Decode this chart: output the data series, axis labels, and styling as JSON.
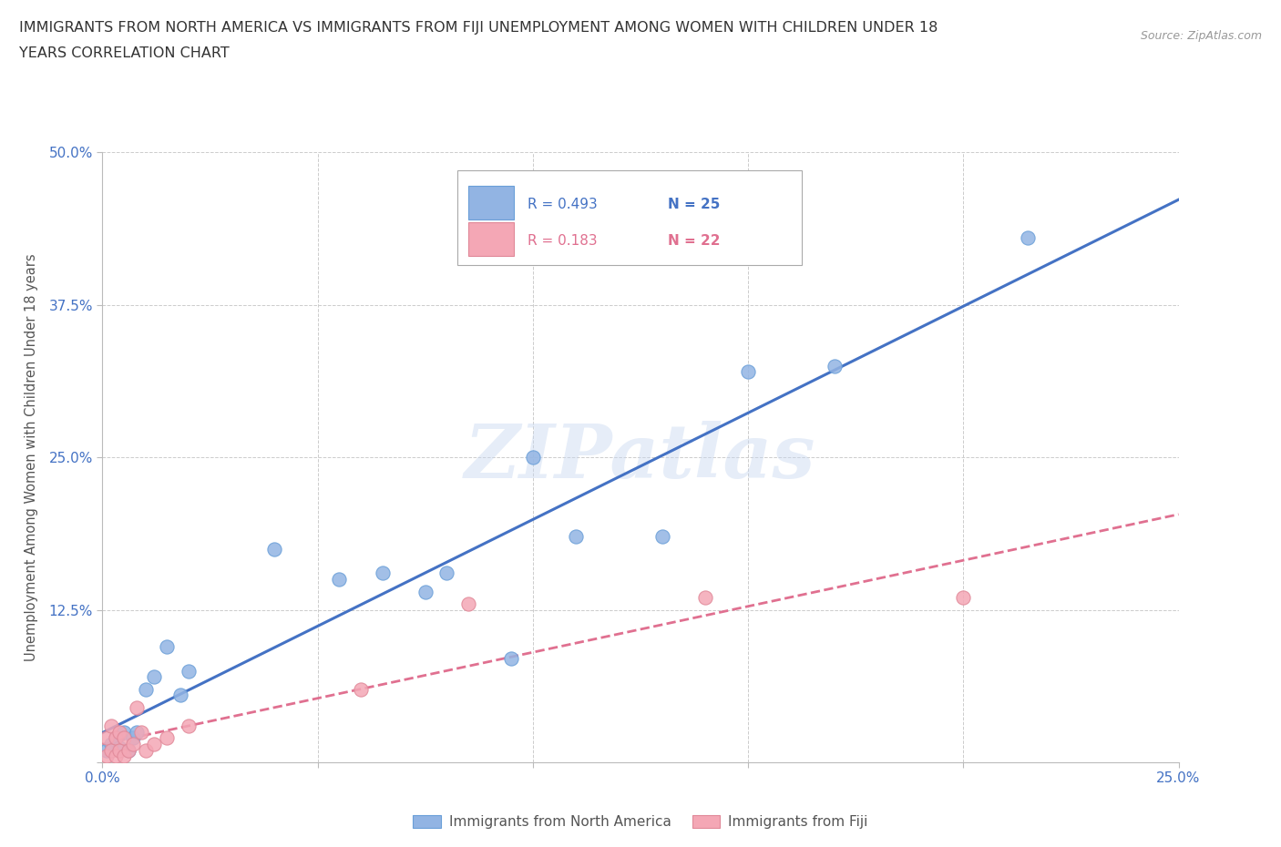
{
  "title_line1": "IMMIGRANTS FROM NORTH AMERICA VS IMMIGRANTS FROM FIJI UNEMPLOYMENT AMONG WOMEN WITH CHILDREN UNDER 18",
  "title_line2": "YEARS CORRELATION CHART",
  "source": "Source: ZipAtlas.com",
  "ylabel": "Unemployment Among Women with Children Under 18 years",
  "xlim": [
    0.0,
    0.25
  ],
  "ylim": [
    0.0,
    0.5
  ],
  "legend_r1": "R = 0.493",
  "legend_n1": "N = 25",
  "legend_r2": "R = 0.183",
  "legend_n2": "N = 22",
  "color_na": "#92b4e3",
  "color_fiji": "#f4a7b5",
  "color_na_line": "#4472c4",
  "color_fiji_line": "#e07090",
  "watermark": "ZIPatlas",
  "north_america_x": [
    0.001,
    0.002,
    0.003,
    0.004,
    0.005,
    0.006,
    0.007,
    0.008,
    0.01,
    0.012,
    0.015,
    0.018,
    0.02,
    0.04,
    0.055,
    0.065,
    0.075,
    0.08,
    0.095,
    0.1,
    0.11,
    0.13,
    0.15,
    0.17,
    0.215
  ],
  "north_america_y": [
    0.01,
    0.015,
    0.02,
    0.012,
    0.025,
    0.01,
    0.02,
    0.025,
    0.06,
    0.07,
    0.095,
    0.055,
    0.075,
    0.175,
    0.15,
    0.155,
    0.14,
    0.155,
    0.085,
    0.25,
    0.185,
    0.185,
    0.32,
    0.325,
    0.43
  ],
  "fiji_x": [
    0.001,
    0.001,
    0.002,
    0.002,
    0.003,
    0.003,
    0.004,
    0.004,
    0.005,
    0.005,
    0.006,
    0.007,
    0.008,
    0.009,
    0.01,
    0.012,
    0.015,
    0.02,
    0.06,
    0.085,
    0.14,
    0.2
  ],
  "fiji_y": [
    0.005,
    0.02,
    0.01,
    0.03,
    0.005,
    0.02,
    0.01,
    0.025,
    0.005,
    0.02,
    0.01,
    0.015,
    0.045,
    0.025,
    0.01,
    0.015,
    0.02,
    0.03,
    0.06,
    0.13,
    0.135,
    0.135
  ]
}
